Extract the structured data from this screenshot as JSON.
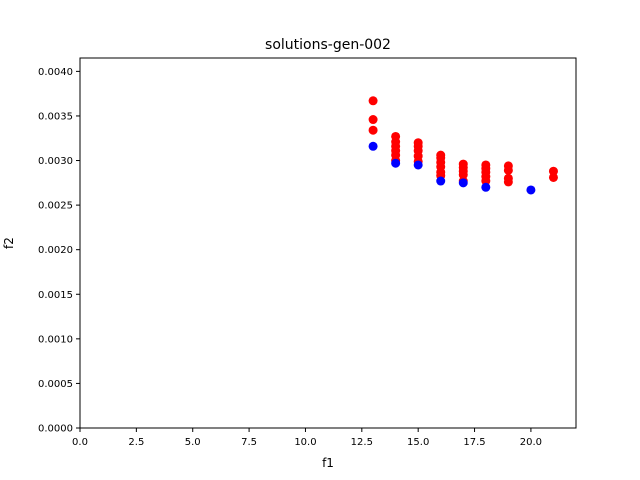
{
  "chart_data": {
    "type": "scatter",
    "title": "solutions-gen-002",
    "xlabel": "f1",
    "ylabel": "f2",
    "xlim": [
      0,
      22
    ],
    "ylim": [
      0,
      0.00415
    ],
    "x_ticks": [
      0,
      2.5,
      5,
      7.5,
      10,
      12.5,
      15,
      17.5,
      20
    ],
    "x_tick_labels": [
      "0.0",
      "2.5",
      "5.0",
      "7.5",
      "10.0",
      "12.5",
      "15.0",
      "17.5",
      "20.0"
    ],
    "y_ticks": [
      0,
      0.0005,
      0.001,
      0.0015,
      0.002,
      0.0025,
      0.003,
      0.0035,
      0.004
    ],
    "y_tick_labels": [
      "0.0000",
      "0.0005",
      "0.0010",
      "0.0015",
      "0.0020",
      "0.0025",
      "0.0030",
      "0.0035",
      "0.0040"
    ],
    "grid": false,
    "series": [
      {
        "color": "#ff0000",
        "x": [
          13,
          13,
          13,
          14,
          14,
          14,
          14,
          14,
          14,
          15,
          15,
          15,
          15,
          15,
          16,
          16,
          16,
          16,
          16,
          16,
          17,
          17,
          17,
          17,
          17,
          18,
          18,
          18,
          18,
          18,
          19,
          19,
          19,
          19,
          21,
          21
        ],
        "y": [
          0.00367,
          0.00346,
          0.00334,
          0.00327,
          0.00321,
          0.00316,
          0.00311,
          0.00306,
          0.003,
          0.0032,
          0.00316,
          0.00311,
          0.00305,
          0.00299,
          0.00306,
          0.00303,
          0.00298,
          0.00293,
          0.00287,
          0.00283,
          0.00296,
          0.00292,
          0.00288,
          0.00284,
          0.00277,
          0.00295,
          0.00291,
          0.00287,
          0.00282,
          0.00277,
          0.00294,
          0.00289,
          0.0028,
          0.00276,
          0.00288,
          0.00281
        ]
      },
      {
        "color": "#0000ff",
        "x": [
          13,
          14,
          15,
          16,
          17,
          18,
          20
        ],
        "y": [
          0.00316,
          0.00297,
          0.00295,
          0.00277,
          0.00275,
          0.0027,
          0.00267
        ]
      }
    ]
  }
}
